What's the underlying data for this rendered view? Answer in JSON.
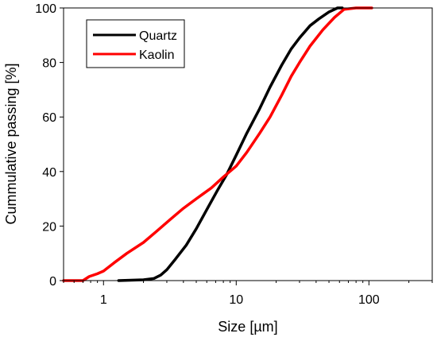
{
  "chart_data": {
    "type": "line",
    "title": "",
    "xlabel": "Size [µm]",
    "ylabel": "Cummulative passing [%]",
    "x_scale": "log",
    "xlim": [
      0.5,
      300
    ],
    "ylim": [
      0,
      100
    ],
    "x_ticks": [
      1,
      10,
      100
    ],
    "x_tick_labels": [
      "1",
      "10",
      "100"
    ],
    "y_ticks": [
      0,
      20,
      40,
      60,
      80,
      100
    ],
    "y_tick_labels": [
      "0",
      "20",
      "40",
      "60",
      "80",
      "100"
    ],
    "grid": false,
    "legend_position": "top-left",
    "series": [
      {
        "name": "Quartz",
        "color": "#000000",
        "points": [
          [
            1.3,
            0
          ],
          [
            2.0,
            0.3
          ],
          [
            2.4,
            0.8
          ],
          [
            2.7,
            2
          ],
          [
            3.0,
            4
          ],
          [
            3.5,
            8
          ],
          [
            4.2,
            13
          ],
          [
            5.0,
            19
          ],
          [
            6.0,
            26
          ],
          [
            7.2,
            33
          ],
          [
            8.5,
            39
          ],
          [
            10,
            46
          ],
          [
            12,
            54
          ],
          [
            15,
            63
          ],
          [
            18,
            71
          ],
          [
            22,
            79
          ],
          [
            26,
            85
          ],
          [
            30,
            89
          ],
          [
            36,
            93.5
          ],
          [
            42,
            96
          ],
          [
            50,
            98.5
          ],
          [
            58,
            100
          ],
          [
            63,
            100
          ]
        ]
      },
      {
        "name": "Kaolin",
        "color": "#ff0000",
        "points": [
          [
            0.5,
            0
          ],
          [
            0.7,
            0
          ],
          [
            0.78,
            1.5
          ],
          [
            0.9,
            2.5
          ],
          [
            1.0,
            3.5
          ],
          [
            1.2,
            6.5
          ],
          [
            1.5,
            10
          ],
          [
            2.0,
            14
          ],
          [
            2.5,
            18
          ],
          [
            3.2,
            22.5
          ],
          [
            4.0,
            26.5
          ],
          [
            5.0,
            30
          ],
          [
            6.5,
            34
          ],
          [
            8.0,
            38
          ],
          [
            10,
            42
          ],
          [
            12,
            47
          ],
          [
            15,
            54
          ],
          [
            18,
            60
          ],
          [
            22,
            68
          ],
          [
            26,
            75
          ],
          [
            30,
            80
          ],
          [
            36,
            86
          ],
          [
            45,
            92
          ],
          [
            55,
            96.5
          ],
          [
            65,
            99.5
          ],
          [
            80,
            100
          ],
          [
            105,
            100
          ]
        ]
      }
    ]
  }
}
